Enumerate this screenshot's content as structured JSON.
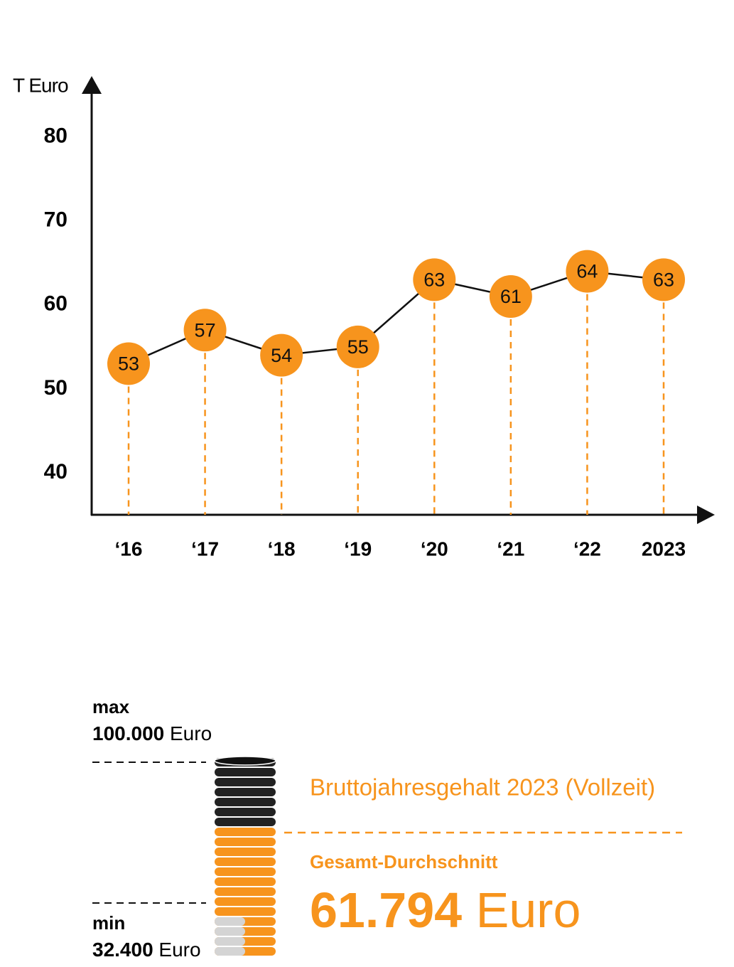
{
  "chart_data": {
    "type": "line",
    "y_label": "T Euro",
    "categories": [
      "‘16",
      "‘17",
      "‘18",
      "‘19",
      "‘20",
      "‘21",
      "‘22",
      "2023"
    ],
    "values": [
      53,
      57,
      54,
      55,
      63,
      61,
      64,
      63
    ],
    "color": "#f7941d",
    "line_color": "#111111",
    "ylim": [
      35,
      87
    ],
    "yticks": [
      40,
      50,
      60,
      70,
      80
    ],
    "grid": false
  },
  "infographic": {
    "max": {
      "label": "max",
      "amount": "100.000",
      "unit": "Euro"
    },
    "min": {
      "label": "min",
      "amount": "32.400",
      "unit": "Euro"
    },
    "title": "Bruttojahresgehalt 2023 (Vollzeit)",
    "average": {
      "label": "Gesamt-Durchschnitt",
      "amount": "61.794",
      "unit": "Euro"
    }
  }
}
